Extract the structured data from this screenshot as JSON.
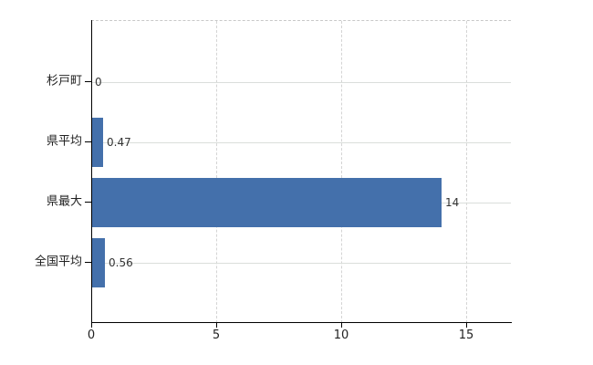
{
  "chart_data": {
    "type": "bar",
    "orientation": "horizontal",
    "title": "",
    "xlabel": "",
    "ylabel": "",
    "categories": [
      "杉戸町",
      "県平均",
      "県最大",
      "全国平均"
    ],
    "values": [
      0,
      0.47,
      14,
      0.56
    ],
    "value_labels": [
      "0",
      "0.47",
      "14",
      "0.56"
    ],
    "xlim": [
      0,
      16.8
    ],
    "xticks": [
      0,
      5,
      10,
      15
    ],
    "xtick_labels": [
      "0",
      "5",
      "10",
      "15"
    ],
    "grid": "horizontal solid per category, vertical dashed at ticks",
    "legend": "none",
    "bar_color": "#4470ab",
    "axis_color": "#000000",
    "gridline_color": "#dadedb",
    "dashed_gridline_color": "#d4d4d4",
    "label_color": "#222222",
    "value_label_color": "#333333"
  }
}
